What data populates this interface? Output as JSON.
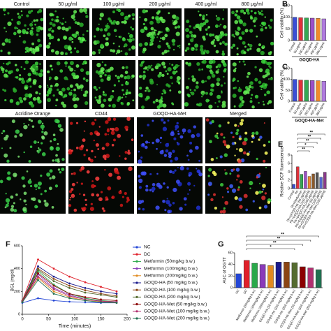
{
  "image_panels": [
    {
      "column_labels": [
        "Control",
        "50 μg/ml",
        "100 μg/ml",
        "200 μg/ml",
        "400 μg/ml",
        "800 μg/ml"
      ]
    },
    {
      "column_labels": [
        "Acridine Orange",
        "CD44",
        "GOQD-HA-Met",
        "Merged"
      ]
    }
  ],
  "chart_data": [
    {
      "type": "bar",
      "panel_label": "B",
      "ylabel": "Cell viability (%)",
      "xlabel": "GOQD-HA",
      "categories": [
        "Control",
        "50 μg/ml",
        "100 μg/ml",
        "200 μg/ml",
        "400 μg/ml",
        "800 μg/ml"
      ],
      "values": [
        100,
        98,
        97,
        96,
        95,
        93
      ],
      "colors": [
        "#3b4fd6",
        "#e0303a",
        "#35a853",
        "#9b4fc7",
        "#f08a2a",
        "#b07be0"
      ],
      "ylim": [
        0,
        150
      ],
      "yticks": [
        0,
        50,
        100,
        150
      ]
    },
    {
      "type": "bar",
      "panel_label": "C",
      "ylabel": "Cell viability (%)",
      "xlabel": "GOQD-HA-Met",
      "categories": [
        "Control",
        "50 μg/ml",
        "100 μg/ml",
        "200 μg/ml",
        "400 μg/ml",
        "800 μg/ml"
      ],
      "values": [
        100,
        97,
        96,
        95,
        94,
        92
      ],
      "colors": [
        "#3b4fd6",
        "#e0303a",
        "#35a853",
        "#9b4fc7",
        "#f08a2a",
        "#b07be0"
      ],
      "ylim": [
        0,
        150
      ],
      "yticks": [
        0,
        50,
        100,
        150
      ]
    },
    {
      "type": "bar",
      "panel_label": "E",
      "ylabel": "Relative DCF fluorescence",
      "categories": [
        "Control",
        "PA",
        "PA+Metformin",
        "PA+GOQD-HA (50 μg/ml)",
        "PA+GOQD-HA (100 μg/ml)",
        "PA+GOQD-HA (200 μg/ml)",
        "PA+GOQD-HA-Met (50 μg/ml)",
        "PA+GOQD-HA-Met (100 μg/ml)",
        "PA+GOQD-HA-Met (200 μg/ml)"
      ],
      "values": [
        1,
        5.2,
        3.4,
        4.1,
        2.9,
        3.5,
        3.8,
        2.7,
        3.9
      ],
      "colors": [
        "#3b4fd6",
        "#e0303a",
        "#35a853",
        "#9b4fc7",
        "#f08a2a",
        "#8b5a2b",
        "#555555",
        "#5566cc",
        "#8a3a8a"
      ],
      "ylim": [
        0,
        8
      ],
      "yticks": [
        0,
        2,
        4,
        6,
        8
      ],
      "annotations": [
        "**",
        "**",
        "**",
        "*",
        "**"
      ]
    },
    {
      "type": "line",
      "panel_label": "F",
      "ylabel": "BGL (mg/dl)",
      "xlabel": "Time (minutes)",
      "x": [
        0,
        30,
        60,
        90,
        120,
        150,
        180
      ],
      "xlim": [
        0,
        200
      ],
      "xticks": [
        0,
        50,
        100,
        150,
        200
      ],
      "ylim": [
        0,
        600
      ],
      "yticks": [
        0,
        200,
        400,
        600
      ],
      "series": [
        {
          "name": "NC",
          "color": "#2346d6",
          "values": [
            100,
            140,
            120,
            110,
            105,
            100,
            100
          ]
        },
        {
          "name": "DC",
          "color": "#e0202a",
          "values": [
            120,
            480,
            400,
            330,
            280,
            240,
            200
          ]
        },
        {
          "name": "Metformin (50mg/kg b.w.)",
          "color": "#2aa84a",
          "values": [
            110,
            380,
            260,
            180,
            140,
            120,
            110
          ]
        },
        {
          "name": "Metformin (100mg/kg b.w.)",
          "color": "#8a3ab9",
          "values": [
            110,
            350,
            230,
            170,
            130,
            115,
            105
          ]
        },
        {
          "name": "Metformin (200mg/kg b.w.)",
          "color": "#e08a20",
          "values": [
            110,
            320,
            200,
            150,
            120,
            110,
            100
          ]
        },
        {
          "name": "GOQD-HA (50 mg/kg b.w.)",
          "color": "#1a1a8c",
          "values": [
            115,
            420,
            330,
            270,
            230,
            200,
            180
          ]
        },
        {
          "name": "GOQD-HA (100 mg/kg b.w.)",
          "color": "#8b4513",
          "values": [
            115,
            400,
            310,
            250,
            210,
            180,
            160
          ]
        },
        {
          "name": "GOQD-HA (200 mg/kg b.w.)",
          "color": "#556b2f",
          "values": [
            115,
            390,
            290,
            230,
            190,
            170,
            150
          ]
        },
        {
          "name": "GOQD-HA-Met (50 mg/kg b.w.)",
          "color": "#8b0000",
          "values": [
            110,
            360,
            250,
            180,
            150,
            130,
            120
          ]
        },
        {
          "name": "GOQD-HA-Met (100 mg/kg b.w.)",
          "color": "#b03070",
          "values": [
            110,
            330,
            220,
            160,
            130,
            115,
            110
          ]
        },
        {
          "name": "GOQD-HA-Met (200 mg/kg b.w.)",
          "color": "#207050",
          "values": [
            105,
            300,
            180,
            140,
            120,
            105,
            100
          ]
        }
      ]
    },
    {
      "type": "bar",
      "panel_label": "G",
      "ylabel": "AUC of OGTT",
      "categories": [
        "NC",
        "DC",
        "Metformin (50mg/kg b.w.)",
        "Metformin (100mg/kg b.w.)",
        "Metformin (200mg/kg b.w.)",
        "GOQD-HA (50 mg/kg b.w.)",
        "GOQD-HA (100 mg/kg b.w.)",
        "GOQD-HA (200 mg/kg b.w.)",
        "GOQD-HA-Met (50 mg/kg b.w.)",
        "GOQD-HA-Met (100 mg/kg b.w.)",
        "GOQD-HA-Met (200 mg/kg b.w.)"
      ],
      "values": [
        24,
        47,
        42,
        40,
        38,
        44,
        44,
        43,
        36,
        34,
        31
      ],
      "colors": [
        "#2346d6",
        "#e0202a",
        "#2aa84a",
        "#8a3ab9",
        "#e08a20",
        "#1a1a8c",
        "#8b4513",
        "#556b2f",
        "#8b0000",
        "#b03070",
        "#207050"
      ],
      "ylim": [
        0,
        60
      ],
      "yticks": [
        0,
        20,
        40,
        60
      ],
      "annotations": [
        "**",
        "**",
        "**",
        "*"
      ]
    }
  ]
}
